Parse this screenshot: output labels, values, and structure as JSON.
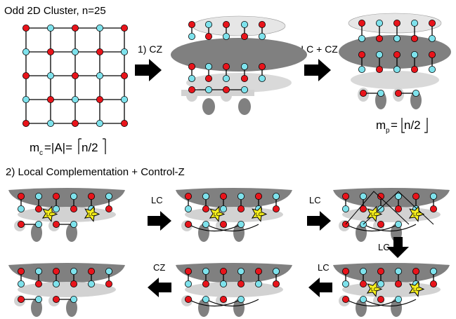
{
  "title": "Odd 2D Cluster, n=25",
  "steps": {
    "step1": "1) CZ",
    "step2": "2) LC + CZ",
    "section2": "2) Local Complementation + Control-Z",
    "lc_a": "LC",
    "lc_b": "LC",
    "lc_c": "LC",
    "lc_d": "LC",
    "cz": "CZ",
    "lc_star": "LC"
  },
  "formulas": {
    "mc_m": "m",
    "mc_sub": "c",
    "mc_rest": "=|A|=",
    "mc_ceil": "n/2",
    "mp_m": "m",
    "mp_sub": "p",
    "mp_rest": "=",
    "mp_floor": "n/2"
  },
  "grid": {
    "rows": 5,
    "cols": 5
  },
  "colors": {
    "red": "#e8141b",
    "cyan": "#7ee2ec",
    "dark": "#808080",
    "light": "#d2d2d2",
    "lighter": "#e6e6e6",
    "star": "#f7ef1c"
  }
}
